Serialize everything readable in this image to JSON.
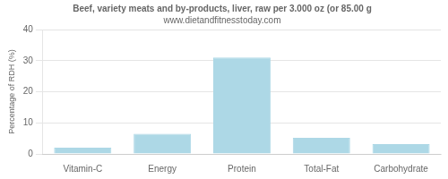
{
  "chart_data": {
    "type": "bar",
    "title": "Beef, variety meats and by-products, liver, raw per 3.000 oz (or 85.00 g",
    "subtitle": "www.dietandfitnesstoday.com",
    "categories": [
      "Vitamin-C",
      "Energy",
      "Protein",
      "Total-Fat",
      "Carbohydrate"
    ],
    "values": [
      2.0,
      6.5,
      31.0,
      5.2,
      3.2
    ],
    "color": "#add8e6",
    "ylabel": "Percentage of RDH (%)",
    "ylim": [
      0,
      40
    ],
    "yticks": [
      0,
      10,
      20,
      30,
      40
    ],
    "grid": true
  }
}
